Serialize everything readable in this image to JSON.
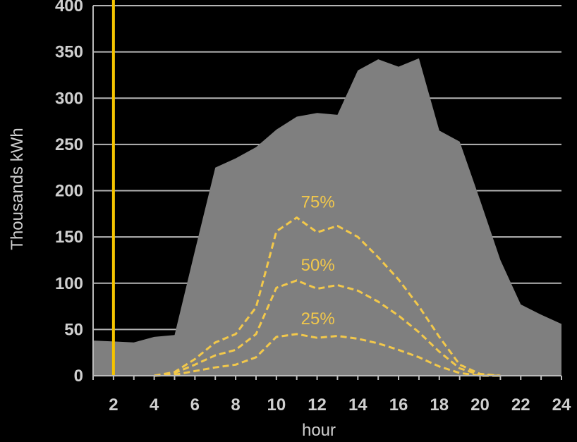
{
  "chart_data": {
    "type": "area",
    "title": "",
    "xlabel": "hour",
    "ylabel": "Thousands kWh",
    "xlim": [
      1,
      24
    ],
    "ylim": [
      0,
      400
    ],
    "x_ticks": [
      2,
      4,
      6,
      8,
      10,
      12,
      14,
      16,
      18,
      20,
      22,
      24
    ],
    "y_ticks": [
      0,
      50,
      100,
      150,
      200,
      250,
      300,
      350,
      400
    ],
    "grid": true,
    "vertical_marker_x": 2,
    "area": {
      "color": "#7f7f7f",
      "x": [
        1,
        2,
        3,
        4,
        5,
        6,
        7,
        8,
        9,
        10,
        11,
        12,
        13,
        14,
        15,
        16,
        17,
        18,
        19,
        20,
        21,
        22,
        23,
        24
      ],
      "values": [
        38,
        37,
        36,
        42,
        44,
        135,
        225,
        235,
        247,
        266,
        280,
        284,
        282,
        330,
        342,
        334,
        343,
        265,
        253,
        190,
        125,
        77,
        66,
        56
      ]
    },
    "series": [
      {
        "name": "75%",
        "style": "dashed",
        "color": "#f2c84b",
        "x": [
          4,
          5,
          6,
          7,
          8,
          9,
          10,
          11,
          12,
          13,
          14,
          15,
          16,
          17,
          18,
          19,
          20,
          21
        ],
        "values": [
          0,
          4,
          18,
          36,
          45,
          74,
          156,
          171,
          155,
          162,
          150,
          128,
          104,
          75,
          42,
          12,
          2,
          0
        ]
      },
      {
        "name": "50%",
        "style": "dashed",
        "color": "#f2c84b",
        "x": [
          4,
          5,
          6,
          7,
          8,
          9,
          10,
          11,
          12,
          13,
          14,
          15,
          16,
          17,
          18,
          19,
          20,
          21
        ],
        "values": [
          0,
          3,
          12,
          22,
          28,
          45,
          95,
          103,
          94,
          98,
          92,
          80,
          65,
          47,
          26,
          8,
          1,
          0
        ]
      },
      {
        "name": "25%",
        "style": "dashed",
        "color": "#f2c84b",
        "x": [
          4,
          5,
          6,
          7,
          8,
          9,
          10,
          11,
          12,
          13,
          14,
          15,
          16,
          17,
          18,
          19,
          20,
          21
        ],
        "values": [
          0,
          1,
          5,
          9,
          12,
          20,
          42,
          45,
          41,
          43,
          40,
          35,
          28,
          20,
          10,
          3,
          0,
          0
        ]
      }
    ],
    "colors": {
      "background": "#000000",
      "plot_background": "#000000",
      "grid": "#b5b5b5",
      "text": "#cfcfcf",
      "marker": "#f5c400"
    }
  }
}
